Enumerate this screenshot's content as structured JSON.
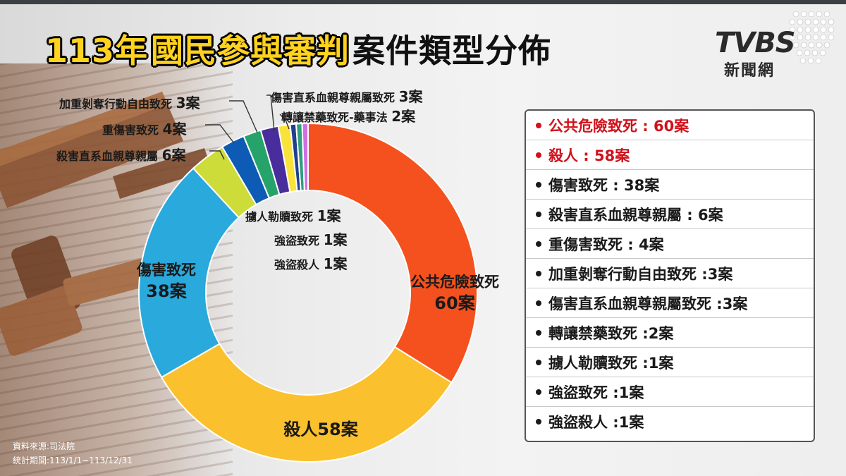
{
  "title": {
    "part1": "113年",
    "part2": "國民參與審判",
    "part3": "案件類型分佈"
  },
  "logo": {
    "text": "TVBS",
    "sub": "新聞網"
  },
  "chart_data": {
    "type": "pie",
    "title": "113年國民參與審判案件類型分佈",
    "unit": "案",
    "categories": [
      "公共危險致死",
      "殺人",
      "傷害致死",
      "殺害直系血親尊親屬",
      "重傷害致死",
      "加重剝奪行動自由致死",
      "傷害直系血親尊親屬致死",
      "轉讓禁藥致死-藥事法",
      "擄人勒贖致死",
      "強盜致死",
      "強盜殺人"
    ],
    "values": [
      60,
      58,
      38,
      6,
      4,
      3,
      3,
      2,
      1,
      1,
      1
    ],
    "colors": [
      "#f4511e",
      "#fbc02d",
      "#29a9dc",
      "#cddc39",
      "#0d5bb4",
      "#26a36a",
      "#4a2d9c",
      "#f9e33a",
      "#1f3f8f",
      "#2e9e7e",
      "#cf6fe2"
    ],
    "legend_position": "right"
  },
  "slice_labels": {
    "public_danger": {
      "name": "公共危險致死",
      "count": "60案"
    },
    "murder": {
      "name": "殺人58案"
    },
    "injury": {
      "name": "傷害致死",
      "count": "38案"
    },
    "kill_relative": {
      "name": "殺害直系血親尊親屬",
      "count": "6案"
    },
    "grievous": {
      "name": "重傷害致死",
      "count": "4案"
    },
    "deprive": {
      "name": "加重剝奪行動自由致死",
      "count": "3案"
    },
    "injure_relative": {
      "name": "傷害直系血親尊親屬致死",
      "count": "3案"
    },
    "drug": {
      "name": "轉讓禁藥致死-藥事法",
      "count": "2案"
    },
    "kidnap": {
      "name": "擄人勒贖致死",
      "count": "1案"
    },
    "robbery_death": {
      "name": "強盜致死",
      "count": "1案"
    },
    "robbery_murder": {
      "name": "強盜殺人",
      "count": "1案"
    }
  },
  "legend": [
    {
      "text": "公共危險致死 : 60案",
      "highlight": true
    },
    {
      "text": "殺人 : 58案",
      "highlight": true
    },
    {
      "text": "傷害致死 : 38案",
      "highlight": false
    },
    {
      "text": "殺害直系血親尊親屬 : 6案",
      "highlight": false
    },
    {
      "text": "重傷害致死 : 4案",
      "highlight": false
    },
    {
      "text": "加重剝奪行動自由致死 :3案",
      "highlight": false
    },
    {
      "text": "傷害直系血親尊親屬致死 :3案",
      "highlight": false
    },
    {
      "text": "轉讓禁藥致死 :2案",
      "highlight": false
    },
    {
      "text": "擄人勒贖致死 :1案",
      "highlight": false
    },
    {
      "text": "強盜致死 :1案",
      "highlight": false
    },
    {
      "text": "強盜殺人 :1案",
      "highlight": false
    }
  ],
  "source": {
    "line1": "資料來源:司法院",
    "line2": "統計期間:113/1/1~113/12/31"
  }
}
